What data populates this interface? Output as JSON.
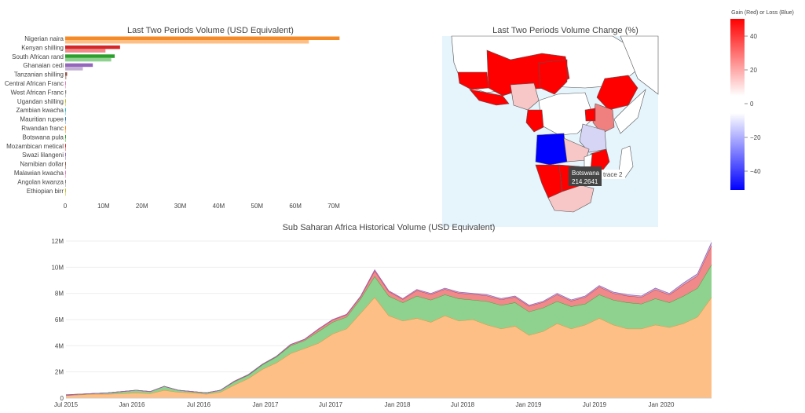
{
  "chart_data": [
    {
      "type": "bar",
      "orientation": "horizontal",
      "title": "Last Two Periods Volume (USD Equivalent)",
      "categories": [
        "Nigerian naira",
        "Kenyan shilling",
        "South African rand",
        "Ghanaian cedi",
        "Tanzanian shilling",
        "Central African Franc",
        "West African Franc",
        "Ugandan shilling",
        "Zambian kwacha",
        "Mauritian rupee",
        "Rwandan franc",
        "Botswana pula",
        "Mozambican metical",
        "Swazi lilangeni",
        "Namibian dollar",
        "Malawian kwacha",
        "Angolan kwanza",
        "Ethiopian birr"
      ],
      "series": [
        {
          "color": "#f58a29",
          "values": [
            71.5,
            14.3,
            12.9,
            7.2,
            0.5,
            0.15,
            0.25,
            0.05,
            0.03,
            0.02,
            0.02,
            0.02,
            0.01,
            0.01,
            0.01,
            0.01,
            0.005,
            0.005
          ]
        },
        {
          "color": "#fdbf86",
          "values": [
            63.5,
            10.5,
            12.0,
            4.6,
            0.3,
            0.1,
            0.15,
            0.04,
            0.02,
            0.02,
            0.01,
            0.01,
            0.01,
            0.01,
            0.01,
            0.01,
            0.005,
            0.005
          ]
        }
      ],
      "bar_colors": [
        "#f58a29",
        "#d62728",
        "#2ca02c",
        "#9467bd",
        "#8c564b",
        "#e377c2",
        "#7f7f7f",
        "#bcbd22",
        "#17becf",
        "#1f77b4",
        "#ff7f0e",
        "#2ca02c",
        "#d62728",
        "#9467bd",
        "#8c564b",
        "#e377c2",
        "#7f7f7f",
        "#bcbd22"
      ],
      "bar_colors_light": [
        "#fdbf86",
        "#f08a8a",
        "#8fd18f",
        "#c5b0d5",
        "#c49c94",
        "#f7b6d2",
        "#c7c7c7",
        "#dbdb8d",
        "#9edae5",
        "#aec7e8",
        "#ffbb78",
        "#98df8a",
        "#ff9896",
        "#c5b0d5",
        "#c49c94",
        "#f7b6d2",
        "#c7c7c7",
        "#dbdb8d"
      ],
      "xticks": [
        "0",
        "10M",
        "20M",
        "30M",
        "40M",
        "50M",
        "60M",
        "70M"
      ],
      "xlim": [
        0,
        72
      ]
    },
    {
      "type": "choropleth",
      "title": "Last Two Periods Volume Change (%)",
      "colorbar_title": "Gain (Red) or Loss (Blue)",
      "colorbar_ticks": [
        "40",
        "20",
        "0",
        "−20",
        "−40"
      ],
      "tooltip": {
        "label": "Botswana",
        "value": "214.2641",
        "trace": "trace 2"
      }
    },
    {
      "type": "area",
      "title": "Sub Saharan Africa Historical Volume (USD Equivalent)",
      "xticks": [
        "Jul 2015",
        "Jan 2016",
        "Jul 2016",
        "Jan 2017",
        "Jul 2017",
        "Jan 2018",
        "Jul 2018",
        "Jan 2019",
        "Jul 2019",
        "Jan 2020"
      ],
      "yticks": [
        "0",
        "2M",
        "4M",
        "6M",
        "8M",
        "10M",
        "12M"
      ],
      "ylim": [
        0,
        12
      ],
      "series_colors": [
        "#fdbf86",
        "#8fd18f",
        "#f08a8a",
        "#c5b0d5",
        "#f7b6d2"
      ],
      "series_lines": [
        "#f58a29",
        "#2ca02c",
        "#d62728",
        "#9467bd",
        "#e377c2"
      ],
      "total_values": [
        0.2,
        0.3,
        0.35,
        0.4,
        0.5,
        0.6,
        0.5,
        0.9,
        0.6,
        0.5,
        0.4,
        0.6,
        1.3,
        1.8,
        2.6,
        3.2,
        4.1,
        4.5,
        5.3,
        6.0,
        6.4,
        7.8,
        9.8,
        8.2,
        7.6,
        8.3,
        8.0,
        8.4,
        8.1,
        8.0,
        7.9,
        7.6,
        7.8,
        7.1,
        7.4,
        8.0,
        7.5,
        7.8,
        8.6,
        8.1,
        7.9,
        7.8,
        8.4,
        8.0,
        8.8,
        9.5,
        11.9
      ],
      "base_values": [
        0.2,
        0.25,
        0.3,
        0.3,
        0.35,
        0.4,
        0.35,
        0.6,
        0.45,
        0.4,
        0.3,
        0.45,
        1.0,
        1.5,
        2.2,
        2.7,
        3.4,
        3.8,
        4.2,
        4.9,
        5.3,
        6.5,
        7.7,
        6.3,
        5.9,
        6.1,
        5.8,
        6.3,
        5.9,
        6.0,
        5.6,
        5.3,
        5.5,
        4.8,
        5.1,
        5.7,
        5.3,
        5.6,
        6.1,
        5.6,
        5.3,
        5.3,
        5.6,
        5.4,
        5.7,
        6.2,
        7.7
      ],
      "green_values": [
        0.05,
        0.05,
        0.05,
        0.1,
        0.15,
        0.2,
        0.15,
        0.3,
        0.15,
        0.1,
        0.1,
        0.15,
        0.25,
        0.25,
        0.35,
        0.45,
        0.6,
        0.6,
        0.9,
        0.9,
        0.9,
        1.1,
        1.6,
        1.5,
        1.4,
        1.7,
        1.7,
        1.6,
        1.7,
        1.5,
        1.8,
        1.8,
        1.8,
        1.8,
        1.8,
        1.7,
        1.7,
        1.6,
        1.8,
        1.9,
        2.0,
        1.9,
        2.0,
        1.9,
        2.1,
        2.2,
        2.5
      ]
    }
  ]
}
